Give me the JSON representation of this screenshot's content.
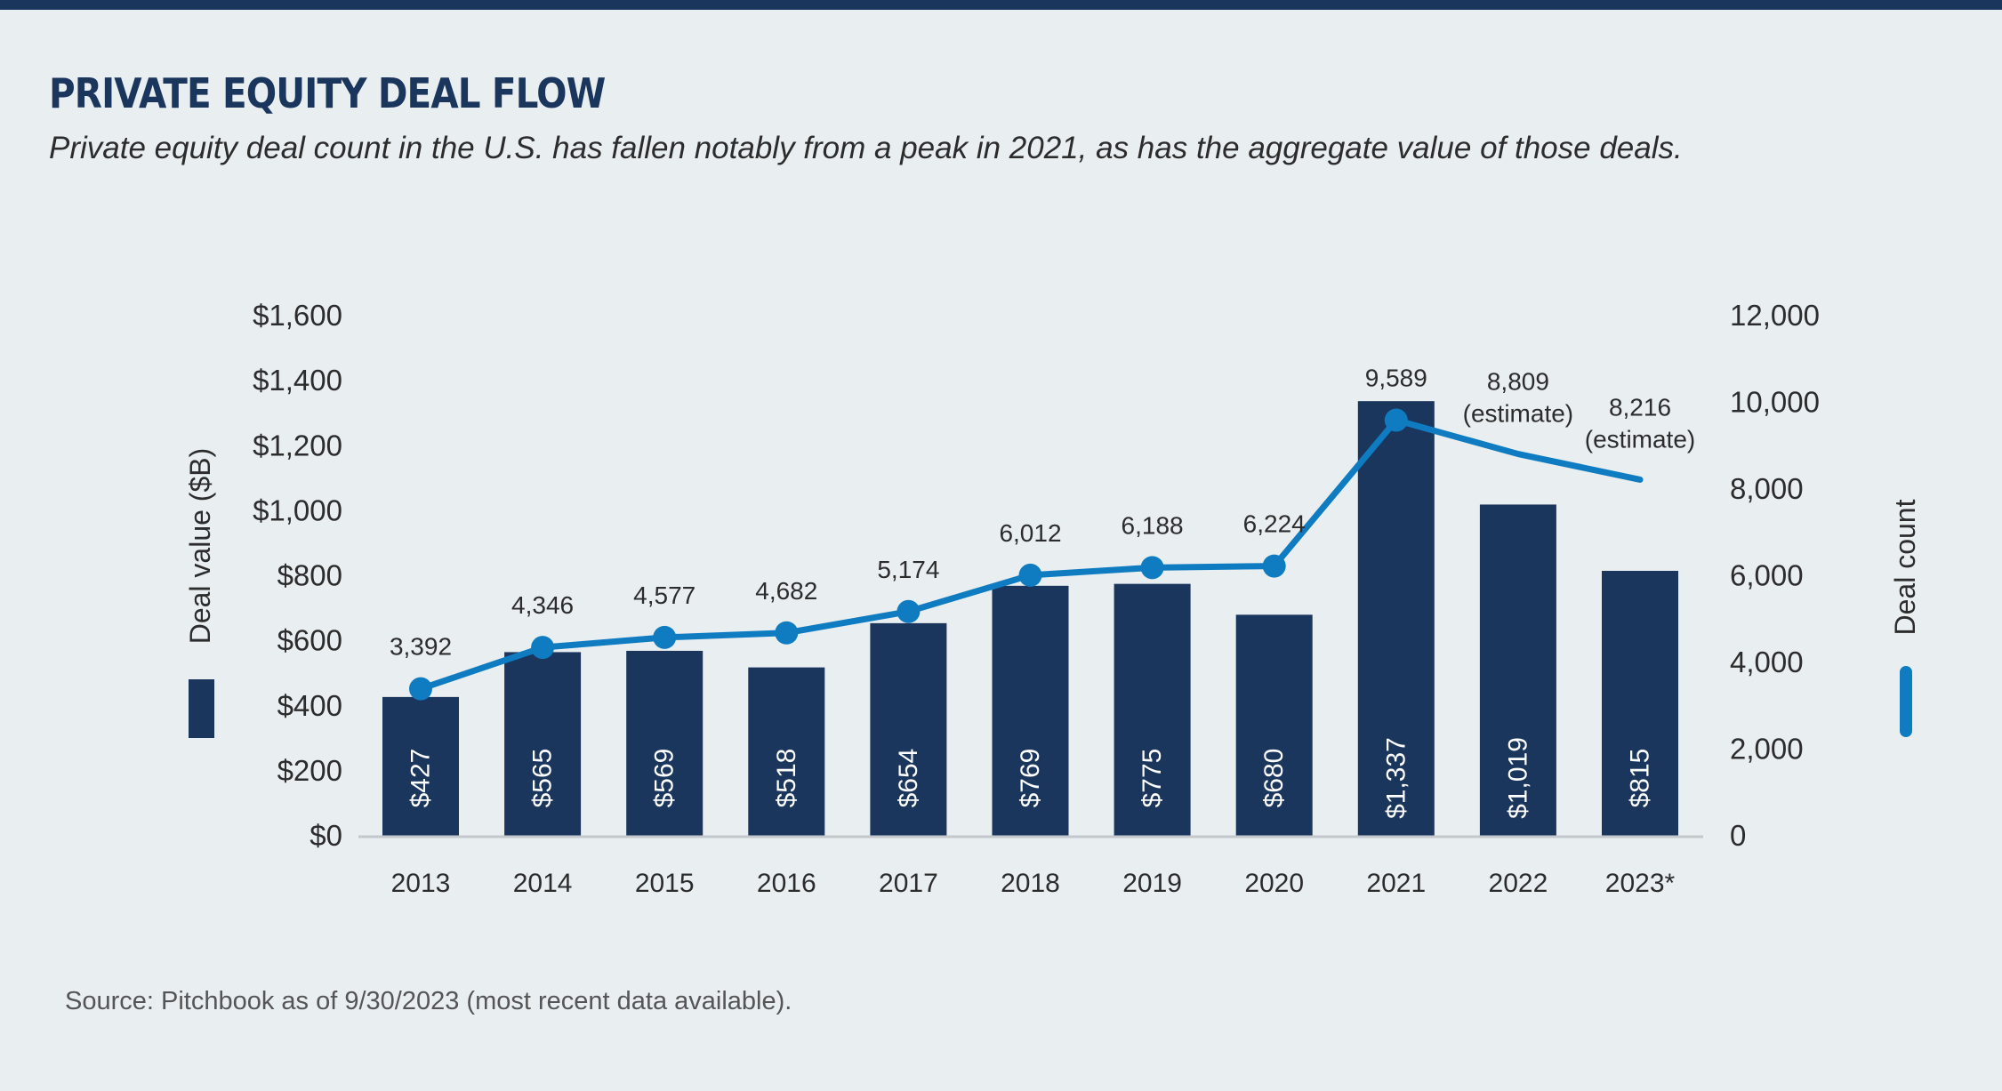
{
  "header": {
    "title": "PRIVATE EQUITY DEAL FLOW",
    "subtitle": "Private equity deal count in the U.S. has fallen notably from a peak in 2021, as has the aggregate value of those deals."
  },
  "footer": {
    "source": "Source: Pitchbook as of 9/30/2023  (most recent data available)."
  },
  "colors": {
    "bar": "#1b365d",
    "line": "#0f7cc1",
    "title": "#1b365d",
    "background": "#e9eef1"
  },
  "chart_data": {
    "type": "bar+line",
    "categories": [
      "2013",
      "2014",
      "2015",
      "2016",
      "2017",
      "2018",
      "2019",
      "2020",
      "2021",
      "2022",
      "2023*"
    ],
    "series": [
      {
        "name": "Deal value ($B)",
        "type": "bar",
        "axis": "left",
        "values": [
          427,
          565,
          569,
          518,
          654,
          769,
          775,
          680,
          1337,
          1019,
          815
        ],
        "labels": [
          "$427",
          "$565",
          "$569",
          "$518",
          "$654",
          "$769",
          "$775",
          "$680",
          "$1,337",
          "$1,019",
          "$815"
        ]
      },
      {
        "name": "Deal count",
        "type": "line",
        "axis": "right",
        "values": [
          3392,
          4346,
          4577,
          4682,
          5174,
          6012,
          6188,
          6224,
          9589,
          8809,
          8216
        ],
        "labels": [
          "3,392",
          "4,346",
          "4,577",
          "4,682",
          "5,174",
          "6,012",
          "6,188",
          "6,224",
          "9,589",
          "8,809",
          "8,216"
        ],
        "label_notes": [
          "",
          "",
          "",
          "",
          "",
          "",
          "",
          "",
          "",
          "(estimate)",
          "(estimate)"
        ],
        "markers": [
          true,
          true,
          true,
          true,
          true,
          true,
          true,
          true,
          true,
          false,
          false
        ]
      }
    ],
    "y_left": {
      "label": "Deal value ($B)",
      "ylim": [
        0,
        1600
      ],
      "ticks": [
        0,
        200,
        400,
        600,
        800,
        1000,
        1200,
        1400,
        1600
      ],
      "tick_labels": [
        "$0",
        "$200",
        "$400",
        "$600",
        "$800",
        "$1,000",
        "$1,200",
        "$1,400",
        "$1,600"
      ]
    },
    "y_right": {
      "label": "Deal count",
      "ylim": [
        0,
        12000
      ],
      "ticks": [
        0,
        2000,
        4000,
        6000,
        8000,
        10000,
        12000
      ],
      "tick_labels": [
        "0",
        "2,000",
        "4,000",
        "6,000",
        "8,000",
        "10,000",
        "12,000"
      ]
    },
    "grid": false,
    "legend": "inline with axis titles"
  }
}
